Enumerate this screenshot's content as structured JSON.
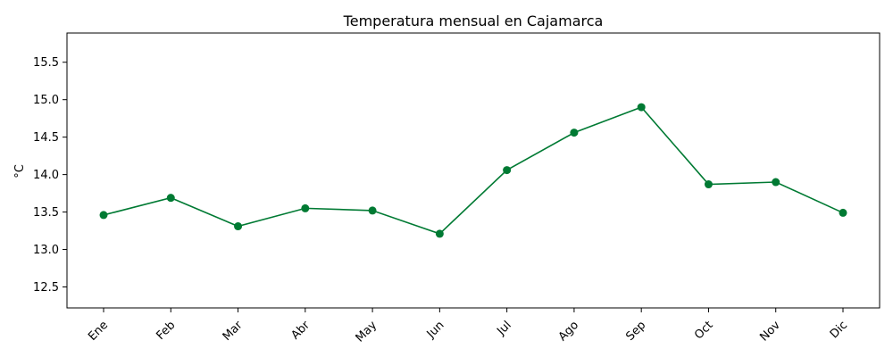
{
  "chart_data": {
    "type": "line",
    "title": "Temperatura mensual en Cajamarca",
    "xlabel": "",
    "ylabel": "°C",
    "categories": [
      "Ene",
      "Feb",
      "Mar",
      "Abr",
      "May",
      "Jun",
      "Jul",
      "Ago",
      "Sep",
      "Oct",
      "Nov",
      "Dic"
    ],
    "series": [
      {
        "values": [
          13.46,
          13.69,
          13.31,
          13.55,
          13.52,
          13.21,
          14.06,
          14.56,
          14.9,
          13.87,
          13.9,
          13.49
        ],
        "color": "#007a33"
      }
    ],
    "ylim": [
      12.22,
      15.89
    ],
    "yticks": [
      12.5,
      13.0,
      13.5,
      14.0,
      14.5,
      15.0,
      15.5
    ],
    "ytick_labels": [
      "12.5",
      "13.0",
      "13.5",
      "14.0",
      "14.5",
      "15.0",
      "15.5"
    ],
    "grid": false,
    "legend": "none"
  }
}
